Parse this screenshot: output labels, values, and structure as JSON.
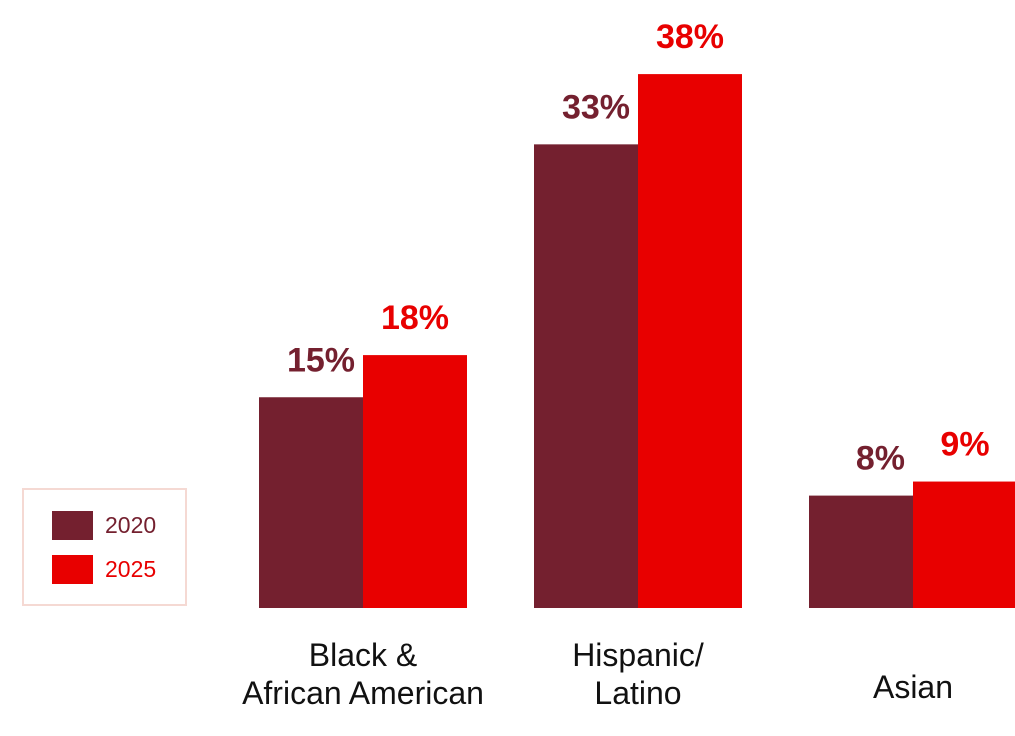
{
  "chart_data": {
    "type": "bar",
    "categories": [
      "Black &\nAfrican American",
      "Hispanic/\nLatino",
      "Asian"
    ],
    "series": [
      {
        "name": "2020",
        "values": [
          15,
          33,
          8
        ],
        "labels": [
          "15%",
          "33%",
          "8%"
        ],
        "color": "#74202f"
      },
      {
        "name": "2025",
        "values": [
          18,
          38,
          9
        ],
        "labels": [
          "18%",
          "38%",
          "9%"
        ],
        "color": "#e80000"
      }
    ],
    "unit": "%",
    "legend": {
      "position": "left",
      "items": [
        "2020",
        "2025"
      ]
    },
    "grid": false,
    "axes_visible": false
  }
}
